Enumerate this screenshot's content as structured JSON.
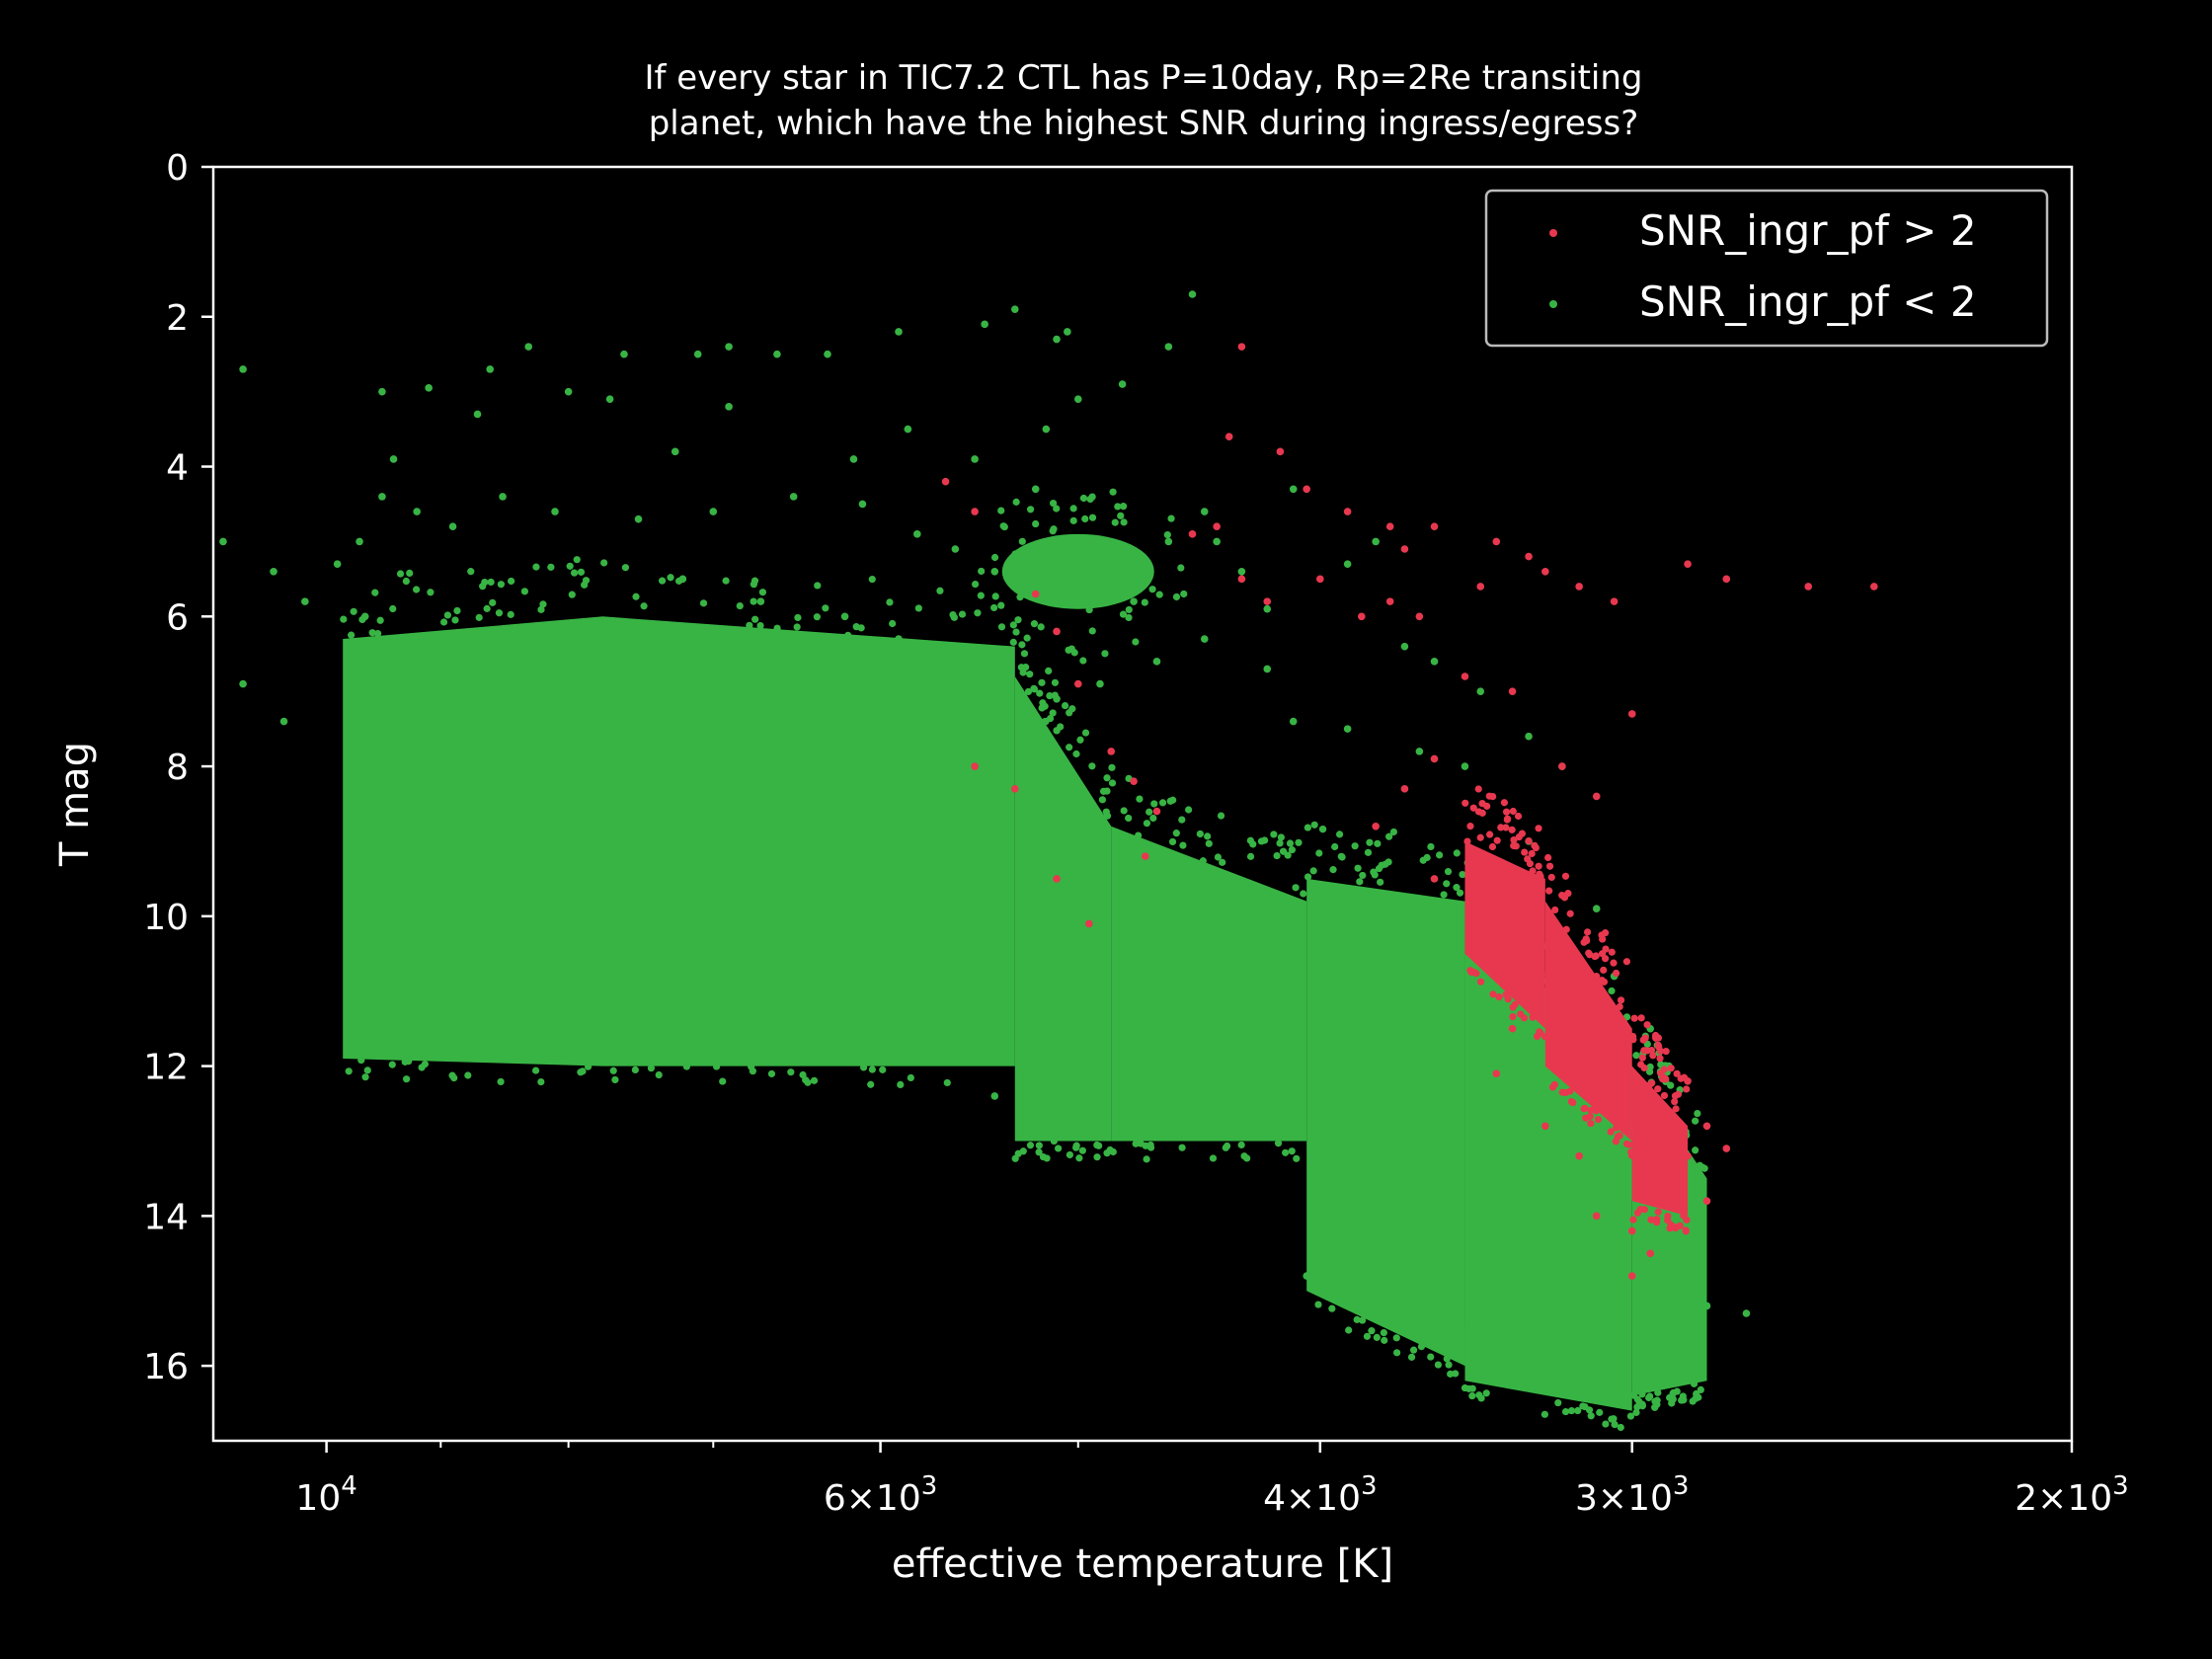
{
  "chart_data": {
    "type": "scatter",
    "title": [
      "If every star in TIC7.2 CTL has P=10day, Rp=2Re transiting",
      "planet, which have the highest SNR during ingress/egress?"
    ],
    "xlabel": "effective temperature [K]",
    "ylabel": "T mag",
    "x_scale": "log",
    "x_inverted": true,
    "y_inverted": true,
    "xlim": [
      11100,
      2000
    ],
    "ylim": [
      17,
      0
    ],
    "x_major_ticks": [
      {
        "value": 10000,
        "mantissa": "10",
        "exp": "4",
        "coef": ""
      },
      {
        "value": 6000,
        "mantissa": "10",
        "exp": "3",
        "coef": "6"
      },
      {
        "value": 4000,
        "mantissa": "10",
        "exp": "3",
        "coef": "4"
      },
      {
        "value": 3000,
        "mantissa": "10",
        "exp": "3",
        "coef": "3"
      },
      {
        "value": 2000,
        "mantissa": "10",
        "exp": "3",
        "coef": "2"
      }
    ],
    "x_minor_ticks": [
      9000,
      8000,
      7000,
      5000
    ],
    "y_ticks": [
      "0",
      "2",
      "4",
      "6",
      "8",
      "10",
      "12",
      "14",
      "16"
    ],
    "legend": {
      "position": "upper right",
      "entries": [
        {
          "label": "SNR_ingr_pf > 2",
          "color": "#e8384f"
        },
        {
          "label": "SNR_ingr_pf < 2",
          "color": "#38b444"
        }
      ]
    },
    "colors": {
      "background": "#000000",
      "axes": "#ffffff",
      "red": "#e8384f",
      "green": "#38b444",
      "legend_edge": "#bbbbbb"
    },
    "series": [
      {
        "name": "SNR_ingr_pf < 2",
        "color": "#38b444",
        "dense_regions": [
          {
            "teff": [
              9850,
              7750
            ],
            "mag_top": [
              6.3,
              6.0
            ],
            "mag_bottom": [
              11.9,
              12.0
            ]
          },
          {
            "teff": [
              7750,
              5300
            ],
            "mag_top": [
              6.0,
              6.4
            ],
            "mag_bottom": [
              12.0,
              12.0
            ]
          },
          {
            "teff": [
              5300,
              4850
            ],
            "mag_top": [
              6.8,
              8.8
            ],
            "mag_bottom": [
              13.0,
              13.0
            ]
          },
          {
            "teff": [
              4850,
              4050
            ],
            "mag_top": [
              8.8,
              9.8
            ],
            "mag_bottom": [
              13.0,
              13.0
            ]
          },
          {
            "teff": [
              4050,
              3500
            ],
            "mag_top": [
              9.5,
              9.8
            ],
            "mag_bottom": [
              15.0,
              16.0
            ]
          },
          {
            "teff": [
              3500,
              3000
            ],
            "mag_top": [
              10.0,
              12.0
            ],
            "mag_bottom": [
              16.2,
              16.6
            ]
          },
          {
            "teff": [
              3000,
              2800
            ],
            "mag_top": [
              12.0,
              13.5
            ],
            "mag_bottom": [
              16.4,
              16.2
            ]
          }
        ],
        "clumps": [
          {
            "teff": 5000,
            "mag": 5.4,
            "spread_teff": 350,
            "spread_mag": 0.5
          }
        ],
        "points": [
          [
            10800,
            2.7
          ],
          [
            9500,
            3.0
          ],
          [
            9100,
            2.95
          ],
          [
            8600,
            2.7
          ],
          [
            8300,
            2.4
          ],
          [
            7600,
            2.5
          ],
          [
            7100,
            2.5
          ],
          [
            6900,
            2.4
          ],
          [
            6600,
            2.5
          ],
          [
            6300,
            2.5
          ],
          [
            5900,
            2.2
          ],
          [
            5450,
            2.1
          ],
          [
            5300,
            1.9
          ],
          [
            5100,
            2.3
          ],
          [
            4600,
            2.4
          ],
          [
            4500,
            1.7
          ],
          [
            5050,
            2.2
          ],
          [
            5000,
            3.1
          ],
          [
            5150,
            3.5
          ],
          [
            4800,
            2.9
          ],
          [
            9400,
            3.9
          ],
          [
            8700,
            3.3
          ],
          [
            8000,
            3.0
          ],
          [
            7700,
            3.1
          ],
          [
            7250,
            3.8
          ],
          [
            6900,
            3.2
          ],
          [
            6150,
            3.9
          ],
          [
            5850,
            3.5
          ],
          [
            5500,
            3.9
          ],
          [
            5200,
            4.3
          ],
          [
            11000,
            5.0
          ],
          [
            10500,
            5.4
          ],
          [
            10200,
            5.8
          ],
          [
            9900,
            5.3
          ],
          [
            9700,
            5.0
          ],
          [
            9650,
            6.0
          ],
          [
            10800,
            6.9
          ],
          [
            10400,
            7.4
          ],
          [
            9300,
            7.3
          ],
          [
            9400,
            6.8
          ],
          [
            9500,
            4.4
          ],
          [
            9200,
            4.6
          ],
          [
            8900,
            4.8
          ],
          [
            8500,
            4.4
          ],
          [
            8100,
            4.6
          ],
          [
            7500,
            4.7
          ],
          [
            7000,
            4.6
          ],
          [
            6500,
            4.4
          ],
          [
            6100,
            4.5
          ],
          [
            5800,
            4.9
          ],
          [
            5600,
            5.1
          ],
          [
            5400,
            5.4
          ],
          [
            5200,
            5.6
          ],
          [
            4850,
            5.3
          ],
          [
            4750,
            5.8
          ],
          [
            4600,
            5.0
          ],
          [
            4450,
            4.6
          ],
          [
            4400,
            5.0
          ],
          [
            4300,
            5.4
          ],
          [
            4200,
            5.9
          ],
          [
            4100,
            4.3
          ],
          [
            3900,
            5.3
          ],
          [
            3800,
            5.0
          ],
          [
            3700,
            6.4
          ],
          [
            3600,
            6.6
          ],
          [
            3450,
            7.0
          ],
          [
            3300,
            7.6
          ],
          [
            3200,
            8.0
          ],
          [
            3900,
            7.5
          ],
          [
            4100,
            7.4
          ],
          [
            9200,
            9.7
          ],
          [
            9700,
            11.2
          ],
          [
            9550,
            11.7
          ],
          [
            8400,
            11.9
          ],
          [
            5400,
            12.4
          ],
          [
            4050,
            14.8
          ],
          [
            3900,
            14.9
          ],
          [
            3750,
            15.3
          ],
          [
            2800,
            15.2
          ],
          [
            2700,
            15.3
          ],
          [
            2850,
            14.3
          ],
          [
            2900,
            13.5
          ],
          [
            3100,
            9.9
          ],
          [
            3050,
            10.8
          ],
          [
            2950,
            11.5
          ],
          [
            2900,
            12.0
          ],
          [
            3000,
            12.8
          ],
          [
            3300,
            9.0
          ],
          [
            3500,
            8.0
          ],
          [
            3650,
            7.8
          ],
          [
            4200,
            6.7
          ],
          [
            4450,
            6.3
          ],
          [
            4650,
            6.6
          ],
          [
            4900,
            6.9
          ],
          [
            5100,
            7.1
          ],
          [
            5600,
            6.7
          ],
          [
            5900,
            6.3
          ],
          [
            6200,
            6.0
          ],
          [
            6700,
            5.8
          ],
          [
            7200,
            5.5
          ]
        ]
      },
      {
        "name": "SNR_ingr_pf > 2",
        "color": "#e8384f",
        "dense_regions": [
          {
            "teff": [
              3500,
              3250
            ],
            "mag_top": [
              9.0,
              9.5
            ],
            "mag_bottom": [
              10.5,
              11.5
            ]
          },
          {
            "teff": [
              3250,
              3000
            ],
            "mag_top": [
              9.8,
              11.5
            ],
            "mag_bottom": [
              12.0,
              13.0
            ]
          },
          {
            "teff": [
              3000,
              2850
            ],
            "mag_top": [
              12.0,
              12.8
            ],
            "mag_bottom": [
              13.8,
              14.0
            ]
          }
        ],
        "points": [
          [
            4300,
            2.4
          ],
          [
            4350,
            3.6
          ],
          [
            4150,
            3.8
          ],
          [
            4400,
            4.8
          ],
          [
            4050,
            4.3
          ],
          [
            3900,
            4.6
          ],
          [
            3750,
            4.8
          ],
          [
            3700,
            5.1
          ],
          [
            3600,
            4.8
          ],
          [
            3450,
            5.6
          ],
          [
            3400,
            5.0
          ],
          [
            3300,
            5.2
          ],
          [
            3250,
            5.4
          ],
          [
            3150,
            5.6
          ],
          [
            3050,
            5.8
          ],
          [
            2850,
            5.3
          ],
          [
            2750,
            5.5
          ],
          [
            2550,
            5.6
          ],
          [
            2400,
            5.6
          ],
          [
            4500,
            4.9
          ],
          [
            4300,
            5.5
          ],
          [
            4200,
            5.8
          ],
          [
            4000,
            5.5
          ],
          [
            3850,
            6.0
          ],
          [
            3750,
            5.8
          ],
          [
            3650,
            6.0
          ],
          [
            5650,
            4.2
          ],
          [
            5500,
            4.6
          ],
          [
            5200,
            5.7
          ],
          [
            5100,
            6.2
          ],
          [
            5000,
            6.9
          ],
          [
            4850,
            7.8
          ],
          [
            4750,
            8.2
          ],
          [
            4650,
            8.6
          ],
          [
            5500,
            8.0
          ],
          [
            5300,
            8.3
          ],
          [
            5100,
            9.5
          ],
          [
            4950,
            10.1
          ],
          [
            4700,
            9.2
          ],
          [
            3500,
            6.8
          ],
          [
            3350,
            7.0
          ],
          [
            3200,
            8.0
          ],
          [
            3100,
            8.4
          ],
          [
            3000,
            7.3
          ],
          [
            3600,
            7.9
          ],
          [
            3700,
            8.3
          ],
          [
            3800,
            8.8
          ],
          [
            3600,
            9.5
          ],
          [
            3450,
            10.2
          ],
          [
            3300,
            10.8
          ],
          [
            3150,
            11.3
          ],
          [
            3050,
            11.9
          ],
          [
            2950,
            12.5
          ],
          [
            2850,
            13.2
          ],
          [
            2800,
            13.8
          ],
          [
            3100,
            14.0
          ],
          [
            3000,
            14.2
          ],
          [
            2950,
            14.5
          ],
          [
            3000,
            14.8
          ],
          [
            2850,
            12.2
          ],
          [
            2800,
            12.8
          ],
          [
            2750,
            13.1
          ],
          [
            3350,
            11.5
          ],
          [
            3400,
            12.1
          ],
          [
            3250,
            12.8
          ],
          [
            3150,
            13.2
          ]
        ]
      }
    ]
  }
}
